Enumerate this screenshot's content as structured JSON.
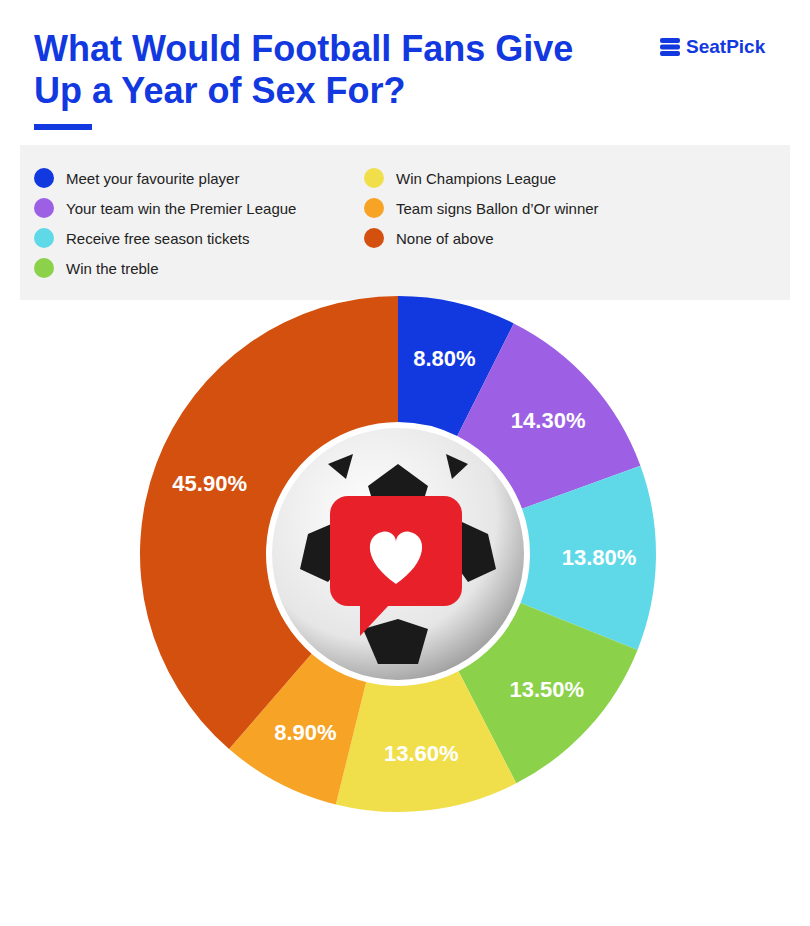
{
  "chart_data": {
    "type": "pie",
    "title": "What Would Football Fans Give Up a Year of Sex For?",
    "annotations": [
      "SeatPick"
    ],
    "categories": [
      "Meet your favourite player",
      "Your team win the Premier League",
      "Receive free season tickets",
      "Win the treble",
      "Win Champions League",
      "Team signs Ballon d’Or winner",
      "None of above"
    ],
    "values": [
      8.8,
      14.3,
      13.8,
      13.5,
      13.6,
      8.9,
      45.9
    ],
    "value_labels": [
      "8.80%",
      "14.30%",
      "13.80%",
      "13.50%",
      "13.60%",
      "8.90%",
      "45.90%"
    ],
    "colors": [
      "#1238e0",
      "#9d5fe3",
      "#5fd9e8",
      "#8bd14a",
      "#f0df4b",
      "#f7a325",
      "#d4500f"
    ],
    "data_labels": true,
    "legend": "top"
  }
}
